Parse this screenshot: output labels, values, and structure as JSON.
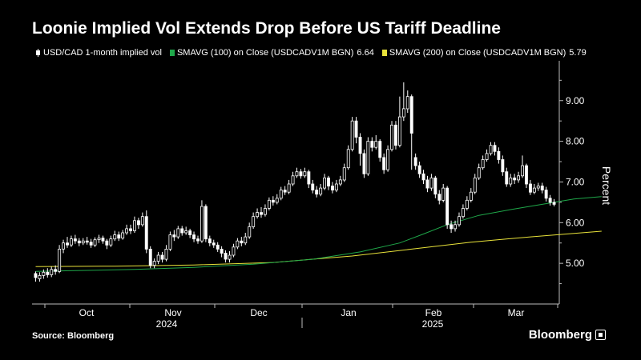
{
  "header": {
    "title": "Loonie Implied Vol Extends Drop Before US Tariff Deadline"
  },
  "legend": {
    "items": [
      {
        "label": "USD/CAD 1-month implied vol",
        "value": "",
        "color": "#ffffff",
        "icon": "candlestick-icon"
      },
      {
        "label": "SMAVG (100)   on Close (USDCADV1M BGN)",
        "value": "6.64",
        "color": "#1fa84a",
        "icon": "square-icon"
      },
      {
        "label": "SMAVG (200)   on Close (USDCADV1M BGN)",
        "value": "5.79",
        "color": "#e8e23a",
        "icon": "square-icon"
      }
    ]
  },
  "footer": {
    "source": "Source: Bloomberg",
    "brand": "Bloomberg"
  },
  "chart_data": {
    "type": "candlestick",
    "ylabel": "Percent",
    "ylim": [
      4.0,
      9.9
    ],
    "yticks": [
      5.0,
      6.0,
      7.0,
      8.0,
      9.0
    ],
    "ytick_labels": [
      "5.00",
      "6.00",
      "7.00",
      "8.00",
      "9.00"
    ],
    "grid": false,
    "axis_position": "right",
    "month_labels": [
      "Oct",
      "Nov",
      "Dec",
      "Jan",
      "Feb",
      "Mar"
    ],
    "year_labels": [
      "2024",
      "2025"
    ],
    "colors": {
      "candle": "#ffffff",
      "sma100": "#1fa84a",
      "sma200": "#e8e23a",
      "axis": "#bbbbbb"
    },
    "candles": [
      [
        4.75,
        4.65,
        4.8,
        4.55
      ],
      [
        4.62,
        4.7,
        4.78,
        4.55
      ],
      [
        4.7,
        4.78,
        4.85,
        4.62
      ],
      [
        4.78,
        4.72,
        4.88,
        4.65
      ],
      [
        4.72,
        4.85,
        4.92,
        4.66
      ],
      [
        4.85,
        4.8,
        4.95,
        4.72
      ],
      [
        4.8,
        5.35,
        5.45,
        4.76
      ],
      [
        5.35,
        5.5,
        5.58,
        5.25
      ],
      [
        5.5,
        5.45,
        5.65,
        5.38
      ],
      [
        5.45,
        5.6,
        5.68,
        5.4
      ],
      [
        5.6,
        5.55,
        5.7,
        5.48
      ],
      [
        5.55,
        5.5,
        5.62,
        5.42
      ],
      [
        5.5,
        5.55,
        5.62,
        5.45
      ],
      [
        5.55,
        5.52,
        5.65,
        5.46
      ],
      [
        5.52,
        5.45,
        5.6,
        5.38
      ],
      [
        5.45,
        5.58,
        5.64,
        5.4
      ],
      [
        5.58,
        5.62,
        5.7,
        5.5
      ],
      [
        5.62,
        5.55,
        5.68,
        5.48
      ],
      [
        5.55,
        5.45,
        5.6,
        5.35
      ],
      [
        5.45,
        5.6,
        5.68,
        5.4
      ],
      [
        5.6,
        5.7,
        5.8,
        5.55
      ],
      [
        5.7,
        5.62,
        5.78,
        5.55
      ],
      [
        5.62,
        5.75,
        5.82,
        5.58
      ],
      [
        5.75,
        5.85,
        5.95,
        5.7
      ],
      [
        5.85,
        5.8,
        5.95,
        5.72
      ],
      [
        5.8,
        6.05,
        6.15,
        5.75
      ],
      [
        6.05,
        5.95,
        6.12,
        5.85
      ],
      [
        5.95,
        6.15,
        6.25,
        5.9
      ],
      [
        6.15,
        5.35,
        6.3,
        5.25
      ],
      [
        5.35,
        4.95,
        5.42,
        4.88
      ],
      [
        4.95,
        5.05,
        5.12,
        4.88
      ],
      [
        5.05,
        5.2,
        5.28,
        4.98
      ],
      [
        5.2,
        5.1,
        5.28,
        5.02
      ],
      [
        5.1,
        5.35,
        5.45,
        5.05
      ],
      [
        5.35,
        5.7,
        5.78,
        5.3
      ],
      [
        5.7,
        5.65,
        5.82,
        5.55
      ],
      [
        5.65,
        5.85,
        5.92,
        5.6
      ],
      [
        5.85,
        5.75,
        5.92,
        5.68
      ],
      [
        5.75,
        5.8,
        5.9,
        5.7
      ],
      [
        5.8,
        5.7,
        5.85,
        5.62
      ],
      [
        5.7,
        5.6,
        5.78,
        5.52
      ],
      [
        5.6,
        5.55,
        5.68,
        5.48
      ],
      [
        5.55,
        6.4,
        6.55,
        5.5
      ],
      [
        6.4,
        5.6,
        6.45,
        5.52
      ],
      [
        5.6,
        5.5,
        5.68,
        5.42
      ],
      [
        5.5,
        5.45,
        5.58,
        5.38
      ],
      [
        5.45,
        5.35,
        5.52,
        5.28
      ],
      [
        5.35,
        5.25,
        5.42,
        5.15
      ],
      [
        5.25,
        5.1,
        5.32,
        5.02
      ],
      [
        5.1,
        5.2,
        5.3,
        5.02
      ],
      [
        5.2,
        5.4,
        5.48,
        5.15
      ],
      [
        5.4,
        5.55,
        5.62,
        5.35
      ],
      [
        5.55,
        5.5,
        5.65,
        5.42
      ],
      [
        5.5,
        5.65,
        5.75,
        5.45
      ],
      [
        5.65,
        5.9,
        6.0,
        5.6
      ],
      [
        5.9,
        6.15,
        6.25,
        5.85
      ],
      [
        6.15,
        6.25,
        6.35,
        6.1
      ],
      [
        6.25,
        6.2,
        6.38,
        6.12
      ],
      [
        6.2,
        6.35,
        6.45,
        6.15
      ],
      [
        6.35,
        6.55,
        6.62,
        6.3
      ],
      [
        6.55,
        6.5,
        6.65,
        6.42
      ],
      [
        6.5,
        6.6,
        6.7,
        6.45
      ],
      [
        6.6,
        6.8,
        6.88,
        6.55
      ],
      [
        6.8,
        6.75,
        6.9,
        6.68
      ],
      [
        6.75,
        6.95,
        7.05,
        6.7
      ],
      [
        6.95,
        7.15,
        7.25,
        6.9
      ],
      [
        7.15,
        7.25,
        7.35,
        7.1
      ],
      [
        7.25,
        7.15,
        7.32,
        7.08
      ],
      [
        7.15,
        7.25,
        7.35,
        7.1
      ],
      [
        7.25,
        6.95,
        7.3,
        6.85
      ],
      [
        6.95,
        6.8,
        7.05,
        6.72
      ],
      [
        6.8,
        6.7,
        6.9,
        6.62
      ],
      [
        6.7,
        6.85,
        6.95,
        6.65
      ],
      [
        6.85,
        7.1,
        7.2,
        6.8
      ],
      [
        7.1,
        6.9,
        7.15,
        6.8
      ],
      [
        6.9,
        6.8,
        7.0,
        6.72
      ],
      [
        6.8,
        6.95,
        7.05,
        6.75
      ],
      [
        6.95,
        7.05,
        7.15,
        6.9
      ],
      [
        7.05,
        7.35,
        7.45,
        7.0
      ],
      [
        7.35,
        7.8,
        7.9,
        7.3
      ],
      [
        7.8,
        8.5,
        8.6,
        7.75
      ],
      [
        8.5,
        8.1,
        8.6,
        7.95
      ],
      [
        8.1,
        7.7,
        8.2,
        7.4
      ],
      [
        7.7,
        7.2,
        7.8,
        7.1
      ],
      [
        7.2,
        8.0,
        8.1,
        7.15
      ],
      [
        8.0,
        7.85,
        8.1,
        7.75
      ],
      [
        7.85,
        8.0,
        8.15,
        7.8
      ],
      [
        8.0,
        7.6,
        8.05,
        7.5
      ],
      [
        7.6,
        7.3,
        7.7,
        7.2
      ],
      [
        7.3,
        7.8,
        7.9,
        7.25
      ],
      [
        7.8,
        8.4,
        8.5,
        7.75
      ],
      [
        8.4,
        7.9,
        8.5,
        7.8
      ],
      [
        7.9,
        8.6,
        9.1,
        7.85
      ],
      [
        8.6,
        8.8,
        9.45,
        8.5
      ],
      [
        8.8,
        9.1,
        9.25,
        8.7
      ],
      [
        9.1,
        8.2,
        9.15,
        7.3
      ],
      [
        7.6,
        7.4,
        7.7,
        7.3
      ],
      [
        7.4,
        7.2,
        7.5,
        7.1
      ],
      [
        7.2,
        7.05,
        7.3,
        6.95
      ],
      [
        7.05,
        6.85,
        7.15,
        6.75
      ],
      [
        6.85,
        7.1,
        7.2,
        6.78
      ],
      [
        7.1,
        6.7,
        7.15,
        6.6
      ],
      [
        6.7,
        6.55,
        6.8,
        6.45
      ],
      [
        6.55,
        6.85,
        6.95,
        6.5
      ],
      [
        6.85,
        5.95,
        6.9,
        5.85
      ],
      [
        5.95,
        5.85,
        6.05,
        5.75
      ],
      [
        5.85,
        5.95,
        6.05,
        5.78
      ],
      [
        5.95,
        6.15,
        6.25,
        5.9
      ],
      [
        6.15,
        6.35,
        6.45,
        6.1
      ],
      [
        6.35,
        6.55,
        6.65,
        6.3
      ],
      [
        6.55,
        6.75,
        6.85,
        6.5
      ],
      [
        6.75,
        7.1,
        7.2,
        6.7
      ],
      [
        7.1,
        7.35,
        7.45,
        7.05
      ],
      [
        7.35,
        7.55,
        7.65,
        7.3
      ],
      [
        7.55,
        7.7,
        7.8,
        7.5
      ],
      [
        7.7,
        7.9,
        7.98,
        7.65
      ],
      [
        7.9,
        7.75,
        7.98,
        7.65
      ],
      [
        7.75,
        7.55,
        7.85,
        7.45
      ],
      [
        7.55,
        7.25,
        7.65,
        7.15
      ],
      [
        7.25,
        6.95,
        7.35,
        6.88
      ],
      [
        6.95,
        7.1,
        7.2,
        6.88
      ],
      [
        7.1,
        7.05,
        7.2,
        6.95
      ],
      [
        7.05,
        7.15,
        7.25,
        6.98
      ],
      [
        7.15,
        7.4,
        7.65,
        7.1
      ],
      [
        7.4,
        6.95,
        7.45,
        6.85
      ],
      [
        6.95,
        6.75,
        7.05,
        6.68
      ],
      [
        6.75,
        6.85,
        6.95,
        6.7
      ],
      [
        6.85,
        6.9,
        6.98,
        6.78
      ],
      [
        6.9,
        6.8,
        6.98,
        6.72
      ],
      [
        6.8,
        6.6,
        6.88,
        6.52
      ],
      [
        6.6,
        6.5,
        6.68,
        6.42
      ],
      [
        6.5,
        6.45,
        6.58,
        6.4
      ]
    ],
    "sma100": [
      [
        0,
        4.8
      ],
      [
        10,
        4.82
      ],
      [
        25,
        4.85
      ],
      [
        40,
        4.9
      ],
      [
        55,
        4.98
      ],
      [
        70,
        5.1
      ],
      [
        82,
        5.28
      ],
      [
        92,
        5.5
      ],
      [
        98,
        5.72
      ],
      [
        104,
        5.95
      ],
      [
        112,
        6.18
      ],
      [
        120,
        6.32
      ],
      [
        128,
        6.45
      ],
      [
        136,
        6.58
      ],
      [
        143,
        6.64
      ]
    ],
    "sma200": [
      [
        0,
        4.92
      ],
      [
        20,
        4.93
      ],
      [
        40,
        4.96
      ],
      [
        60,
        5.02
      ],
      [
        80,
        5.18
      ],
      [
        95,
        5.35
      ],
      [
        110,
        5.52
      ],
      [
        125,
        5.65
      ],
      [
        143,
        5.79
      ]
    ]
  }
}
